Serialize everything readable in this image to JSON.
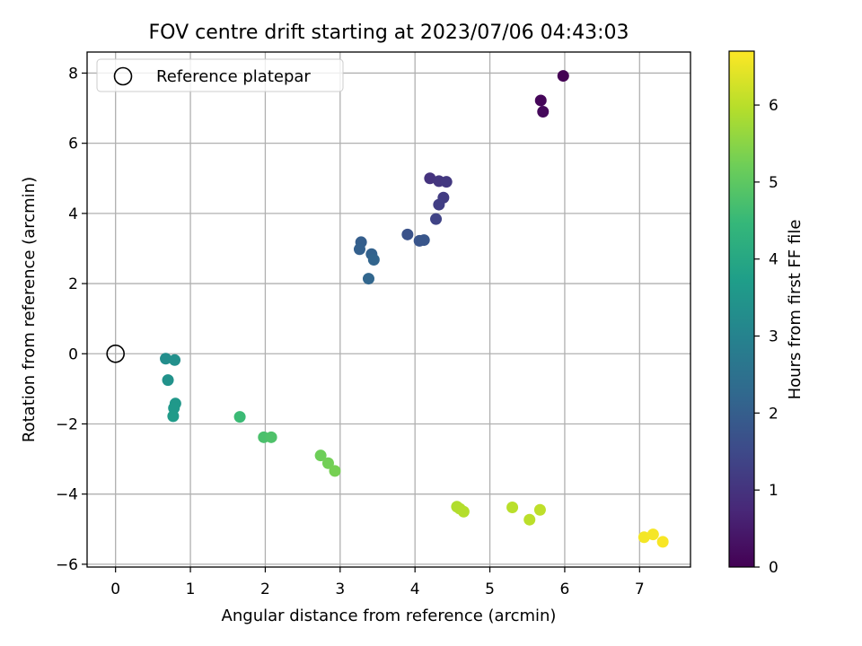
{
  "chart_data": {
    "type": "scatter",
    "title": "FOV centre drift starting at 2023/07/06 04:43:03",
    "xlabel": "Angular distance from reference (arcmin)",
    "ylabel": "Rotation from reference (arcmin)",
    "xlim": [
      -0.38,
      7.68
    ],
    "ylim": [
      -6.08,
      8.6
    ],
    "xticks": [
      0,
      1,
      2,
      3,
      4,
      5,
      6,
      7
    ],
    "yticks": [
      -6,
      -4,
      -2,
      0,
      2,
      4,
      6,
      8
    ],
    "grid": true,
    "legend": {
      "position": "top-left",
      "entries": [
        "Reference platepar"
      ]
    },
    "reference_point": {
      "name": "Reference platepar",
      "x": 0,
      "y": 0
    },
    "colorbar": {
      "label": "Hours from first FF file",
      "colormap": "viridis",
      "range": [
        0,
        6.7
      ],
      "ticks": [
        0,
        1,
        2,
        3,
        4,
        5,
        6
      ]
    },
    "points": [
      {
        "x": 5.98,
        "y": 7.92,
        "c": 0.0
      },
      {
        "x": 5.68,
        "y": 7.22,
        "c": 0.1
      },
      {
        "x": 5.71,
        "y": 6.9,
        "c": 0.15
      },
      {
        "x": 4.2,
        "y": 5.0,
        "c": 1.0
      },
      {
        "x": 4.32,
        "y": 4.92,
        "c": 1.05
      },
      {
        "x": 4.42,
        "y": 4.9,
        "c": 1.1
      },
      {
        "x": 4.38,
        "y": 4.45,
        "c": 1.2
      },
      {
        "x": 4.32,
        "y": 4.25,
        "c": 1.25
      },
      {
        "x": 4.28,
        "y": 3.84,
        "c": 1.35
      },
      {
        "x": 3.9,
        "y": 3.4,
        "c": 1.7
      },
      {
        "x": 4.06,
        "y": 3.22,
        "c": 1.75
      },
      {
        "x": 4.12,
        "y": 3.24,
        "c": 1.8
      },
      {
        "x": 3.28,
        "y": 3.18,
        "c": 2.0
      },
      {
        "x": 3.26,
        "y": 2.98,
        "c": 2.05
      },
      {
        "x": 3.42,
        "y": 2.84,
        "c": 2.1
      },
      {
        "x": 3.45,
        "y": 2.68,
        "c": 2.15
      },
      {
        "x": 3.38,
        "y": 2.14,
        "c": 2.2
      },
      {
        "x": 0.67,
        "y": -0.14,
        "c": 3.3
      },
      {
        "x": 0.79,
        "y": -0.18,
        "c": 3.35
      },
      {
        "x": 0.7,
        "y": -0.75,
        "c": 3.4
      },
      {
        "x": 0.8,
        "y": -1.42,
        "c": 3.55
      },
      {
        "x": 0.78,
        "y": -1.55,
        "c": 3.6
      },
      {
        "x": 0.77,
        "y": -1.78,
        "c": 3.65
      },
      {
        "x": 1.66,
        "y": -1.8,
        "c": 4.55
      },
      {
        "x": 1.98,
        "y": -2.38,
        "c": 4.75
      },
      {
        "x": 2.08,
        "y": -2.38,
        "c": 4.8
      },
      {
        "x": 2.74,
        "y": -2.9,
        "c": 5.2
      },
      {
        "x": 2.84,
        "y": -3.12,
        "c": 5.25
      },
      {
        "x": 2.93,
        "y": -3.34,
        "c": 5.3
      },
      {
        "x": 4.56,
        "y": -4.36,
        "c": 5.9
      },
      {
        "x": 4.6,
        "y": -4.42,
        "c": 5.92
      },
      {
        "x": 4.65,
        "y": -4.5,
        "c": 5.95
      },
      {
        "x": 5.3,
        "y": -4.38,
        "c": 6.0
      },
      {
        "x": 5.53,
        "y": -4.73,
        "c": 6.02
      },
      {
        "x": 5.67,
        "y": -4.45,
        "c": 6.05
      },
      {
        "x": 7.06,
        "y": -5.23,
        "c": 6.6
      },
      {
        "x": 7.18,
        "y": -5.15,
        "c": 6.62
      },
      {
        "x": 7.31,
        "y": -5.36,
        "c": 6.65
      }
    ]
  }
}
